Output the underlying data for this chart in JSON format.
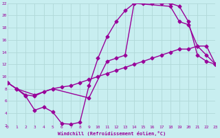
{
  "xlabel": "Windchill (Refroidissement éolien,°C)",
  "bg_color": "#c8eef0",
  "grid_color": "#b0d8d8",
  "line_color": "#990099",
  "xlim": [
    0,
    23
  ],
  "ylim": [
    2,
    22
  ],
  "xticks": [
    0,
    1,
    2,
    3,
    4,
    5,
    6,
    7,
    8,
    9,
    10,
    11,
    12,
    13,
    14,
    15,
    16,
    17,
    18,
    19,
    20,
    21,
    22,
    23
  ],
  "yticks": [
    2,
    4,
    6,
    8,
    10,
    12,
    14,
    16,
    18,
    20,
    22
  ],
  "line1_x": [
    0,
    1,
    2,
    3,
    4,
    5,
    6,
    7,
    8,
    9,
    10,
    11,
    12,
    13,
    14,
    15,
    16,
    17,
    18,
    19,
    20,
    21,
    22,
    23
  ],
  "line1_y": [
    9.0,
    8.0,
    7.0,
    6.8,
    7.5,
    8.0,
    8.3,
    8.5,
    9.0,
    9.5,
    10.0,
    10.5,
    11.0,
    11.5,
    12.0,
    12.5,
    13.0,
    13.5,
    14.0,
    14.5,
    14.5,
    15.0,
    15.0,
    12.0
  ],
  "line2_x": [
    0,
    1,
    2,
    3,
    4,
    5,
    6,
    7,
    8,
    9,
    10,
    11,
    12,
    13,
    14,
    15,
    16,
    17,
    18,
    19,
    20,
    21,
    22,
    23
  ],
  "line2_y": [
    9.0,
    8.0,
    6.8,
    4.5,
    5.0,
    4.2,
    2.3,
    2.2,
    2.5,
    8.5,
    13.0,
    16.5,
    19.0,
    20.8,
    22.0,
    22.0,
    22.0,
    22.0,
    22.0,
    21.5,
    19.0,
    13.5,
    12.5,
    12.0
  ],
  "line3_x": [
    0,
    1,
    3,
    5,
    9,
    11,
    12,
    13,
    14,
    18,
    19,
    20,
    21,
    22,
    23
  ],
  "line3_y": [
    9.0,
    8.0,
    7.0,
    8.0,
    6.5,
    12.5,
    13.0,
    13.5,
    22.0,
    21.5,
    19.0,
    18.5,
    15.0,
    13.5,
    12.0
  ],
  "marker": "D",
  "markersize": 2.5,
  "linewidth": 1.0
}
